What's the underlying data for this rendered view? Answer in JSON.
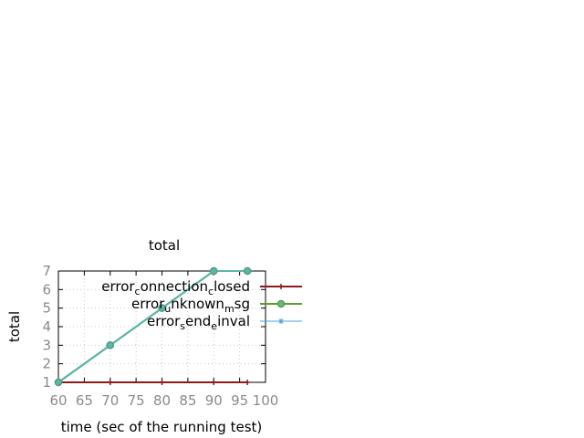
{
  "chart_data": {
    "type": "line",
    "title": "total",
    "xlabel": "time (sec of the running test)",
    "ylabel": "total",
    "xlim": [
      60,
      100
    ],
    "ylim": [
      1,
      7
    ],
    "xticks": [
      60,
      65,
      70,
      75,
      80,
      85,
      90,
      95,
      100
    ],
    "yticks": [
      1,
      2,
      3,
      4,
      5,
      6,
      7
    ],
    "grid": true,
    "legend_position": "right",
    "series": [
      {
        "name": "errorconnectionclosed",
        "legend_parts": [
          [
            "error",
            false
          ],
          [
            "c",
            true
          ],
          [
            "onnection",
            false
          ],
          [
            "c",
            true
          ],
          [
            "losed",
            false
          ]
        ],
        "color": "#8b1a1a",
        "marker": "plus",
        "x": [
          60,
          70,
          80,
          90,
          96.5
        ],
        "y": [
          1,
          1,
          1,
          1,
          1
        ]
      },
      {
        "name": "errorunknownmsg",
        "legend_parts": [
          [
            "error",
            false
          ],
          [
            "u",
            true
          ],
          [
            "nknown",
            false
          ],
          [
            "m",
            true
          ],
          [
            "sg",
            false
          ]
        ],
        "color": "#5aa02c",
        "marker": "circle",
        "x": [
          60,
          70,
          80,
          90,
          96.5
        ],
        "y": [
          1,
          3,
          5,
          7,
          7
        ]
      },
      {
        "name": "errorsendeinval",
        "legend_parts": [
          [
            "error",
            false
          ],
          [
            "s",
            true
          ],
          [
            "end",
            false
          ],
          [
            "e",
            true
          ],
          [
            "inval",
            false
          ]
        ],
        "color": "#4aa3d8",
        "marker": "star",
        "x": [
          60,
          70,
          80,
          90,
          96.5
        ],
        "y": [
          1,
          3,
          5,
          7,
          7
        ]
      }
    ]
  }
}
